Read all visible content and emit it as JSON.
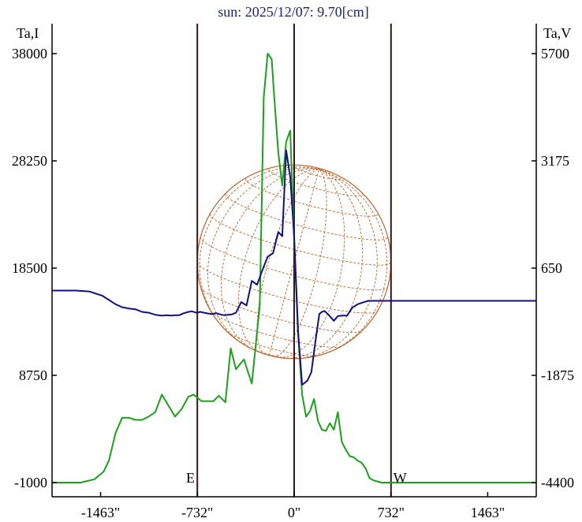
{
  "chart_data": {
    "type": "line",
    "title": "sun: 2025/12/07: 9.70[cm]",
    "y_left_label": "Ta,I",
    "y_right_label": "Ta,V",
    "x_range": [
      -1830,
      1830
    ],
    "x_ticks": [
      {
        "value": -1463,
        "label": "-1463\""
      },
      {
        "value": -732,
        "label": "-732\""
      },
      {
        "value": 0,
        "label": "0\""
      },
      {
        "value": 732,
        "label": "732\""
      },
      {
        "value": 1463,
        "label": "1463\""
      }
    ],
    "y_left_range": [
      -1000,
      38000
    ],
    "y_left_ticks": [
      {
        "value": 38000,
        "label": "38000"
      },
      {
        "value": 28250,
        "label": "28250"
      },
      {
        "value": 18500,
        "label": "18500"
      },
      {
        "value": 8750,
        "label": "8750"
      },
      {
        "value": -1000,
        "label": "-1000"
      }
    ],
    "y_right_range": [
      -4400,
      5700
    ],
    "y_right_ticks": [
      {
        "value": 5700,
        "label": "5700"
      },
      {
        "value": 3175,
        "label": "3175"
      },
      {
        "value": 650,
        "label": "650"
      },
      {
        "value": -1875,
        "label": "-1875"
      },
      {
        "value": -4400,
        "label": "-4400"
      }
    ],
    "vertical_lines": [
      -732,
      0,
      732
    ],
    "limb_markers": [
      {
        "x": -784,
        "label": "E"
      },
      {
        "x": 800,
        "label": "W"
      }
    ],
    "sun_disk": {
      "radius_arcsec": 732,
      "grid_visible": true
    },
    "colors": {
      "axis": "#000000",
      "vertical_line": "#3b1414",
      "disk": "#c0632a",
      "series_I": "#18a418",
      "series_V": "#10108c",
      "title": "#1a237e"
    },
    "series": [
      {
        "axis": "left",
        "x": [
          -1830,
          -1615,
          -1510,
          -1440,
          -1400,
          -1350,
          -1300,
          -1250,
          -1200,
          -1150,
          -1100,
          -1050,
          -1000,
          -950,
          -900,
          -850,
          -800,
          -760,
          -700,
          -650,
          -610,
          -570,
          -520,
          -480,
          -440,
          -380,
          -320,
          -260,
          -230,
          -200,
          -170,
          -150,
          -120,
          -90,
          -60,
          -30,
          0,
          30,
          60,
          90,
          120,
          150,
          180,
          210,
          240,
          270,
          300,
          330,
          360,
          390,
          420,
          450,
          480,
          510,
          540,
          570,
          600,
          630,
          660,
          700,
          740,
          780,
          800,
          830,
          860,
          890,
          920,
          1000,
          1100,
          1200,
          1300,
          1400,
          1500,
          1600,
          1700,
          1830
        ],
        "y": [
          -1000,
          -1000,
          -700,
          0,
          1000,
          3500,
          4900,
          4900,
          4700,
          4700,
          5000,
          5400,
          7000,
          6000,
          5000,
          5700,
          6800,
          7000,
          6400,
          6400,
          6400,
          6900,
          6300,
          11200,
          9300,
          10200,
          8000,
          15100,
          34000,
          38000,
          37500,
          34000,
          29000,
          26000,
          30000,
          31000,
          21000,
          12500,
          7000,
          5000,
          5500,
          6600,
          4600,
          3800,
          3700,
          4400,
          3800,
          5400,
          2700,
          2000,
          1400,
          1300,
          1000,
          800,
          300,
          -600,
          -800,
          -900,
          -1000,
          -1000,
          -1000,
          -1000,
          -1000,
          -1000,
          -1000,
          -1000,
          -1000,
          -1000,
          -1000,
          -1000,
          -1000,
          -1000,
          -1000,
          -1000,
          -1000,
          -1000
        ]
      },
      {
        "axis": "right",
        "x": [
          -1830,
          -1650,
          -1550,
          -1450,
          -1400,
          -1350,
          -1300,
          -1250,
          -1200,
          -1150,
          -1100,
          -1050,
          -1000,
          -960,
          -930,
          -900,
          -870,
          -840,
          -800,
          -770,
          -740,
          -710,
          -680,
          -650,
          -620,
          -590,
          -560,
          -530,
          -500,
          -470,
          -440,
          -400,
          -360,
          -320,
          -280,
          -240,
          -200,
          -160,
          -120,
          -90,
          -60,
          -30,
          0,
          30,
          60,
          100,
          130,
          160,
          190,
          210,
          230,
          260,
          300,
          330,
          360,
          400,
          440,
          480,
          520,
          560,
          600,
          650,
          700,
          740,
          780,
          820,
          860,
          900,
          940,
          1000,
          1100,
          1200,
          1300,
          1400,
          1500,
          1600,
          1700,
          1830
        ],
        "y": [
          120,
          120,
          100,
          0,
          -100,
          -200,
          -270,
          -300,
          -320,
          -380,
          -400,
          -450,
          -470,
          -460,
          -470,
          -460,
          -460,
          -420,
          -380,
          -370,
          -400,
          -380,
          -400,
          -420,
          -430,
          -410,
          -440,
          -460,
          -450,
          -440,
          -400,
          -150,
          -230,
          350,
          260,
          600,
          920,
          1000,
          1500,
          1400,
          3420,
          2800,
          1400,
          -840,
          -2100,
          -2000,
          -1800,
          -1100,
          -430,
          -380,
          -360,
          -450,
          -590,
          -480,
          -470,
          -470,
          -280,
          -200,
          -160,
          -120,
          -120,
          -120,
          -120,
          -120,
          -120,
          -120,
          -120,
          -120,
          -120,
          -120,
          -120,
          -120,
          -120,
          -120,
          -120,
          -120,
          -120,
          -120
        ]
      }
    ]
  }
}
